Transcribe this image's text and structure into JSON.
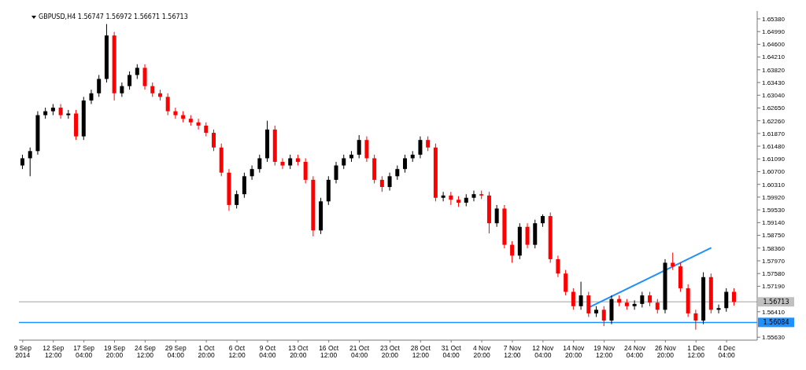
{
  "chart_data": {
    "type": "candlestick",
    "title": "GBPUSD,H4  1.56747 1.56972 1.56671 1.56713",
    "categories": [
      "9 Sep 2014",
      null,
      null,
      null,
      "12 Sep 12:00",
      null,
      null,
      null,
      "17 Sep 04:00",
      null,
      null,
      null,
      "19 Sep 20:00",
      null,
      null,
      null,
      "24 Sep 12:00",
      null,
      null,
      null,
      "29 Sep 04:00",
      null,
      null,
      null,
      "1 Oct 20:00",
      null,
      null,
      null,
      "6 Oct 12:00",
      null,
      null,
      null,
      "9 Oct 04:00",
      null,
      null,
      null,
      "13 Oct 20:00",
      null,
      null,
      null,
      "16 Oct 12:00",
      null,
      null,
      null,
      "21 Oct 04:00",
      null,
      null,
      null,
      "23 Oct 20:00",
      null,
      null,
      null,
      "28 Oct 12:00",
      null,
      null,
      null,
      "31 Oct 04:00",
      null,
      null,
      null,
      "4 Nov 20:00",
      null,
      null,
      null,
      "7 Nov 12:00",
      null,
      null,
      null,
      "12 Nov 04:00",
      null,
      null,
      null,
      "14 Nov 20:00",
      null,
      null,
      null,
      "19 Nov 12:00",
      null,
      null,
      null,
      "24 Nov 04:00",
      null,
      null,
      null,
      "26 Nov 20:00",
      null,
      null,
      null,
      "1 Dec 12:00",
      null,
      null,
      null,
      "4 Dec 04:00",
      null
    ],
    "ohlc": [
      [
        1.6089,
        1.6122,
        1.6078,
        1.6111
      ],
      [
        1.6111,
        1.6144,
        1.6056,
        1.6133
      ],
      [
        1.6133,
        1.6255,
        1.6122,
        1.6243
      ],
      [
        1.6243,
        1.6266,
        1.6232,
        1.6255
      ],
      [
        1.6255,
        1.6277,
        1.6243,
        1.6266
      ],
      [
        1.6266,
        1.6277,
        1.6232,
        1.6243
      ],
      [
        1.6243,
        1.6259,
        1.6232,
        1.6248
      ],
      [
        1.6248,
        1.6259,
        1.6167,
        1.6178
      ],
      [
        1.6178,
        1.6299,
        1.6167,
        1.6288
      ],
      [
        1.6288,
        1.6321,
        1.6277,
        1.631
      ],
      [
        1.631,
        1.6366,
        1.6299,
        1.6354
      ],
      [
        1.6354,
        1.6522,
        1.6343,
        1.6487
      ],
      [
        1.6487,
        1.6498,
        1.6288,
        1.631
      ],
      [
        1.631,
        1.6343,
        1.6299,
        1.6332
      ],
      [
        1.6332,
        1.6377,
        1.6321,
        1.6366
      ],
      [
        1.6366,
        1.6399,
        1.6354,
        1.6388
      ],
      [
        1.6388,
        1.6399,
        1.6321,
        1.6332
      ],
      [
        1.6332,
        1.6343,
        1.6299,
        1.631
      ],
      [
        1.631,
        1.6321,
        1.6288,
        1.6299
      ],
      [
        1.6299,
        1.631,
        1.6243,
        1.6255
      ],
      [
        1.6255,
        1.6266,
        1.6232,
        1.6243
      ],
      [
        1.6243,
        1.6255,
        1.6221,
        1.6232
      ],
      [
        1.6232,
        1.6243,
        1.6211,
        1.6221
      ],
      [
        1.6221,
        1.6232,
        1.6199,
        1.6211
      ],
      [
        1.6211,
        1.6221,
        1.6178,
        1.6189
      ],
      [
        1.6189,
        1.6199,
        1.6133,
        1.6144
      ],
      [
        1.6144,
        1.6156,
        1.6056,
        1.6067
      ],
      [
        1.6067,
        1.6078,
        1.595,
        1.5968
      ],
      [
        1.5968,
        1.6012,
        1.5957,
        1.6001
      ],
      [
        1.6001,
        1.6067,
        1.599,
        1.6056
      ],
      [
        1.6056,
        1.6089,
        1.6045,
        1.6078
      ],
      [
        1.6078,
        1.6122,
        1.6067,
        1.6111
      ],
      [
        1.6111,
        1.6226,
        1.61,
        1.6199
      ],
      [
        1.6199,
        1.6211,
        1.6089,
        1.61
      ],
      [
        1.61,
        1.6111,
        1.6078,
        1.6089
      ],
      [
        1.6089,
        1.6122,
        1.6078,
        1.6111
      ],
      [
        1.6111,
        1.6122,
        1.6089,
        1.61
      ],
      [
        1.61,
        1.6111,
        1.6034,
        1.6045
      ],
      [
        1.6045,
        1.6056,
        1.5872,
        1.589
      ],
      [
        1.589,
        1.599,
        1.5879,
        1.5979
      ],
      [
        1.5979,
        1.6056,
        1.5968,
        1.6045
      ],
      [
        1.6045,
        1.61,
        1.6034,
        1.6089
      ],
      [
        1.6089,
        1.6122,
        1.6078,
        1.6111
      ],
      [
        1.6111,
        1.6133,
        1.61,
        1.6122
      ],
      [
        1.6122,
        1.6182,
        1.6111,
        1.6167
      ],
      [
        1.6167,
        1.6178,
        1.61,
        1.6111
      ],
      [
        1.6111,
        1.6122,
        1.6034,
        1.6045
      ],
      [
        1.6045,
        1.6056,
        1.6008,
        1.6023
      ],
      [
        1.6023,
        1.6067,
        1.6012,
        1.6056
      ],
      [
        1.6056,
        1.6089,
        1.6045,
        1.6078
      ],
      [
        1.6078,
        1.6122,
        1.6067,
        1.6111
      ],
      [
        1.6111,
        1.6133,
        1.61,
        1.6122
      ],
      [
        1.6122,
        1.6178,
        1.6111,
        1.6167
      ],
      [
        1.6167,
        1.6178,
        1.6133,
        1.6144
      ],
      [
        1.6144,
        1.6156,
        1.5979,
        1.599
      ],
      [
        1.599,
        1.6008,
        1.5979,
        1.5997
      ],
      [
        1.5997,
        1.6008,
        1.5968,
        1.5984
      ],
      [
        1.5984,
        1.5995,
        1.5962,
        1.5975
      ],
      [
        1.5975,
        1.6001,
        1.5964,
        1.599
      ],
      [
        1.599,
        1.6012,
        1.5979,
        1.6001
      ],
      [
        1.6001,
        1.6012,
        1.5986,
        1.5997
      ],
      [
        1.5997,
        1.6008,
        1.5881,
        1.5912
      ],
      [
        1.5912,
        1.5968,
        1.5901,
        1.5957
      ],
      [
        1.5957,
        1.5968,
        1.5835,
        1.5846
      ],
      [
        1.5846,
        1.5857,
        1.5791,
        1.5813
      ],
      [
        1.5813,
        1.5912,
        1.5802,
        1.5901
      ],
      [
        1.5901,
        1.5912,
        1.5835,
        1.5846
      ],
      [
        1.5846,
        1.5923,
        1.5835,
        1.5912
      ],
      [
        1.5912,
        1.5939,
        1.5901,
        1.5934
      ],
      [
        1.5934,
        1.5945,
        1.5791,
        1.5802
      ],
      [
        1.5802,
        1.5813,
        1.5747,
        1.5758
      ],
      [
        1.5758,
        1.5769,
        1.5691,
        1.5702
      ],
      [
        1.5702,
        1.5713,
        1.5647,
        1.5658
      ],
      [
        1.5658,
        1.5733,
        1.5647,
        1.5691
      ],
      [
        1.5691,
        1.5702,
        1.5625,
        1.5636
      ],
      [
        1.5636,
        1.5658,
        1.5625,
        1.5647
      ],
      [
        1.5647,
        1.5658,
        1.5597,
        1.5614
      ],
      [
        1.5614,
        1.5691,
        1.5603,
        1.568
      ],
      [
        1.568,
        1.5691,
        1.5658,
        1.5669
      ],
      [
        1.5669,
        1.568,
        1.5647,
        1.5658
      ],
      [
        1.5658,
        1.5676,
        1.5647,
        1.5665
      ],
      [
        1.5665,
        1.5702,
        1.5654,
        1.5691
      ],
      [
        1.5691,
        1.5702,
        1.5658,
        1.5669
      ],
      [
        1.5669,
        1.568,
        1.5636,
        1.5647
      ],
      [
        1.5647,
        1.5802,
        1.5636,
        1.5791
      ],
      [
        1.5791,
        1.5822,
        1.5769,
        1.578
      ],
      [
        1.578,
        1.5791,
        1.5702,
        1.5713
      ],
      [
        1.5713,
        1.5725,
        1.5625,
        1.5636
      ],
      [
        1.5636,
        1.5647,
        1.5586,
        1.5614
      ],
      [
        1.5614,
        1.5762,
        1.5603,
        1.5747
      ],
      [
        1.5747,
        1.5758,
        1.5636,
        1.5647
      ],
      [
        1.5647,
        1.5663,
        1.5636,
        1.5652
      ],
      [
        1.5652,
        1.5713,
        1.5641,
        1.5702
      ],
      [
        1.5702,
        1.5713,
        1.566,
        1.5671
      ]
    ],
    "series": [
      {
        "type": "line",
        "color": "#1e90ff",
        "values": [
          null,
          null,
          null,
          null,
          null,
          null,
          null,
          null,
          null,
          null,
          null,
          null,
          null,
          null,
          null,
          null,
          null,
          null,
          null,
          null,
          null,
          null,
          null,
          null,
          null,
          null,
          null,
          null,
          null,
          null,
          null,
          null,
          null,
          null,
          null,
          null,
          null,
          null,
          null,
          null,
          null,
          null,
          null,
          null,
          null,
          null,
          null,
          null,
          null,
          null,
          null,
          null,
          null,
          null,
          null,
          null,
          null,
          null,
          null,
          null,
          null,
          null,
          null,
          null,
          null,
          null,
          null,
          null,
          null,
          null,
          null,
          null,
          null,
          null,
          1.5654,
          null,
          null,
          null,
          null,
          null,
          null,
          null,
          null,
          null,
          null,
          null,
          null,
          null,
          null,
          null,
          1.5837,
          null,
          null,
          null
        ]
      }
    ],
    "ylim": [
      1.5554,
      1.6562
    ],
    "yticks": [
      {
        "value": 1.6538,
        "label": "1.65380"
      },
      {
        "value": 1.6499,
        "label": "1.64990"
      },
      {
        "value": 1.646,
        "label": "1.64600"
      },
      {
        "value": 1.6421,
        "label": "1.64210"
      },
      {
        "value": 1.6382,
        "label": "1.63820"
      },
      {
        "value": 1.6343,
        "label": "1.63430"
      },
      {
        "value": 1.6304,
        "label": "1.63040"
      },
      {
        "value": 1.6265,
        "label": "1.62650"
      },
      {
        "value": 1.6226,
        "label": "1.62260"
      },
      {
        "value": 1.6187,
        "label": "1.61870"
      },
      {
        "value": 1.6148,
        "label": "1.61480"
      },
      {
        "value": 1.6109,
        "label": "1.61090"
      },
      {
        "value": 1.607,
        "label": "1.60700"
      },
      {
        "value": 1.6031,
        "label": "1.60310"
      },
      {
        "value": 1.5992,
        "label": "1.59920"
      },
      {
        "value": 1.5953,
        "label": "1.59530"
      },
      {
        "value": 1.5914,
        "label": "1.59140"
      },
      {
        "value": 1.5875,
        "label": "1.58750"
      },
      {
        "value": 1.5836,
        "label": "1.58360"
      },
      {
        "value": 1.5797,
        "label": "1.57970"
      },
      {
        "value": 1.5758,
        "label": "1.57580"
      },
      {
        "value": 1.5719,
        "label": "1.57190"
      },
      {
        "value": 1.5641,
        "label": "1.56410"
      },
      {
        "value": 1.5563,
        "label": "1.55630"
      }
    ],
    "ref_lines": [
      {
        "axis": "y",
        "value": 1.56713,
        "label": "1.56713",
        "color": "#c0c0c0"
      },
      {
        "axis": "y",
        "value": 1.56084,
        "label": "1.56084",
        "color": "#1e90ff"
      }
    ],
    "grid": false,
    "legend": false
  }
}
